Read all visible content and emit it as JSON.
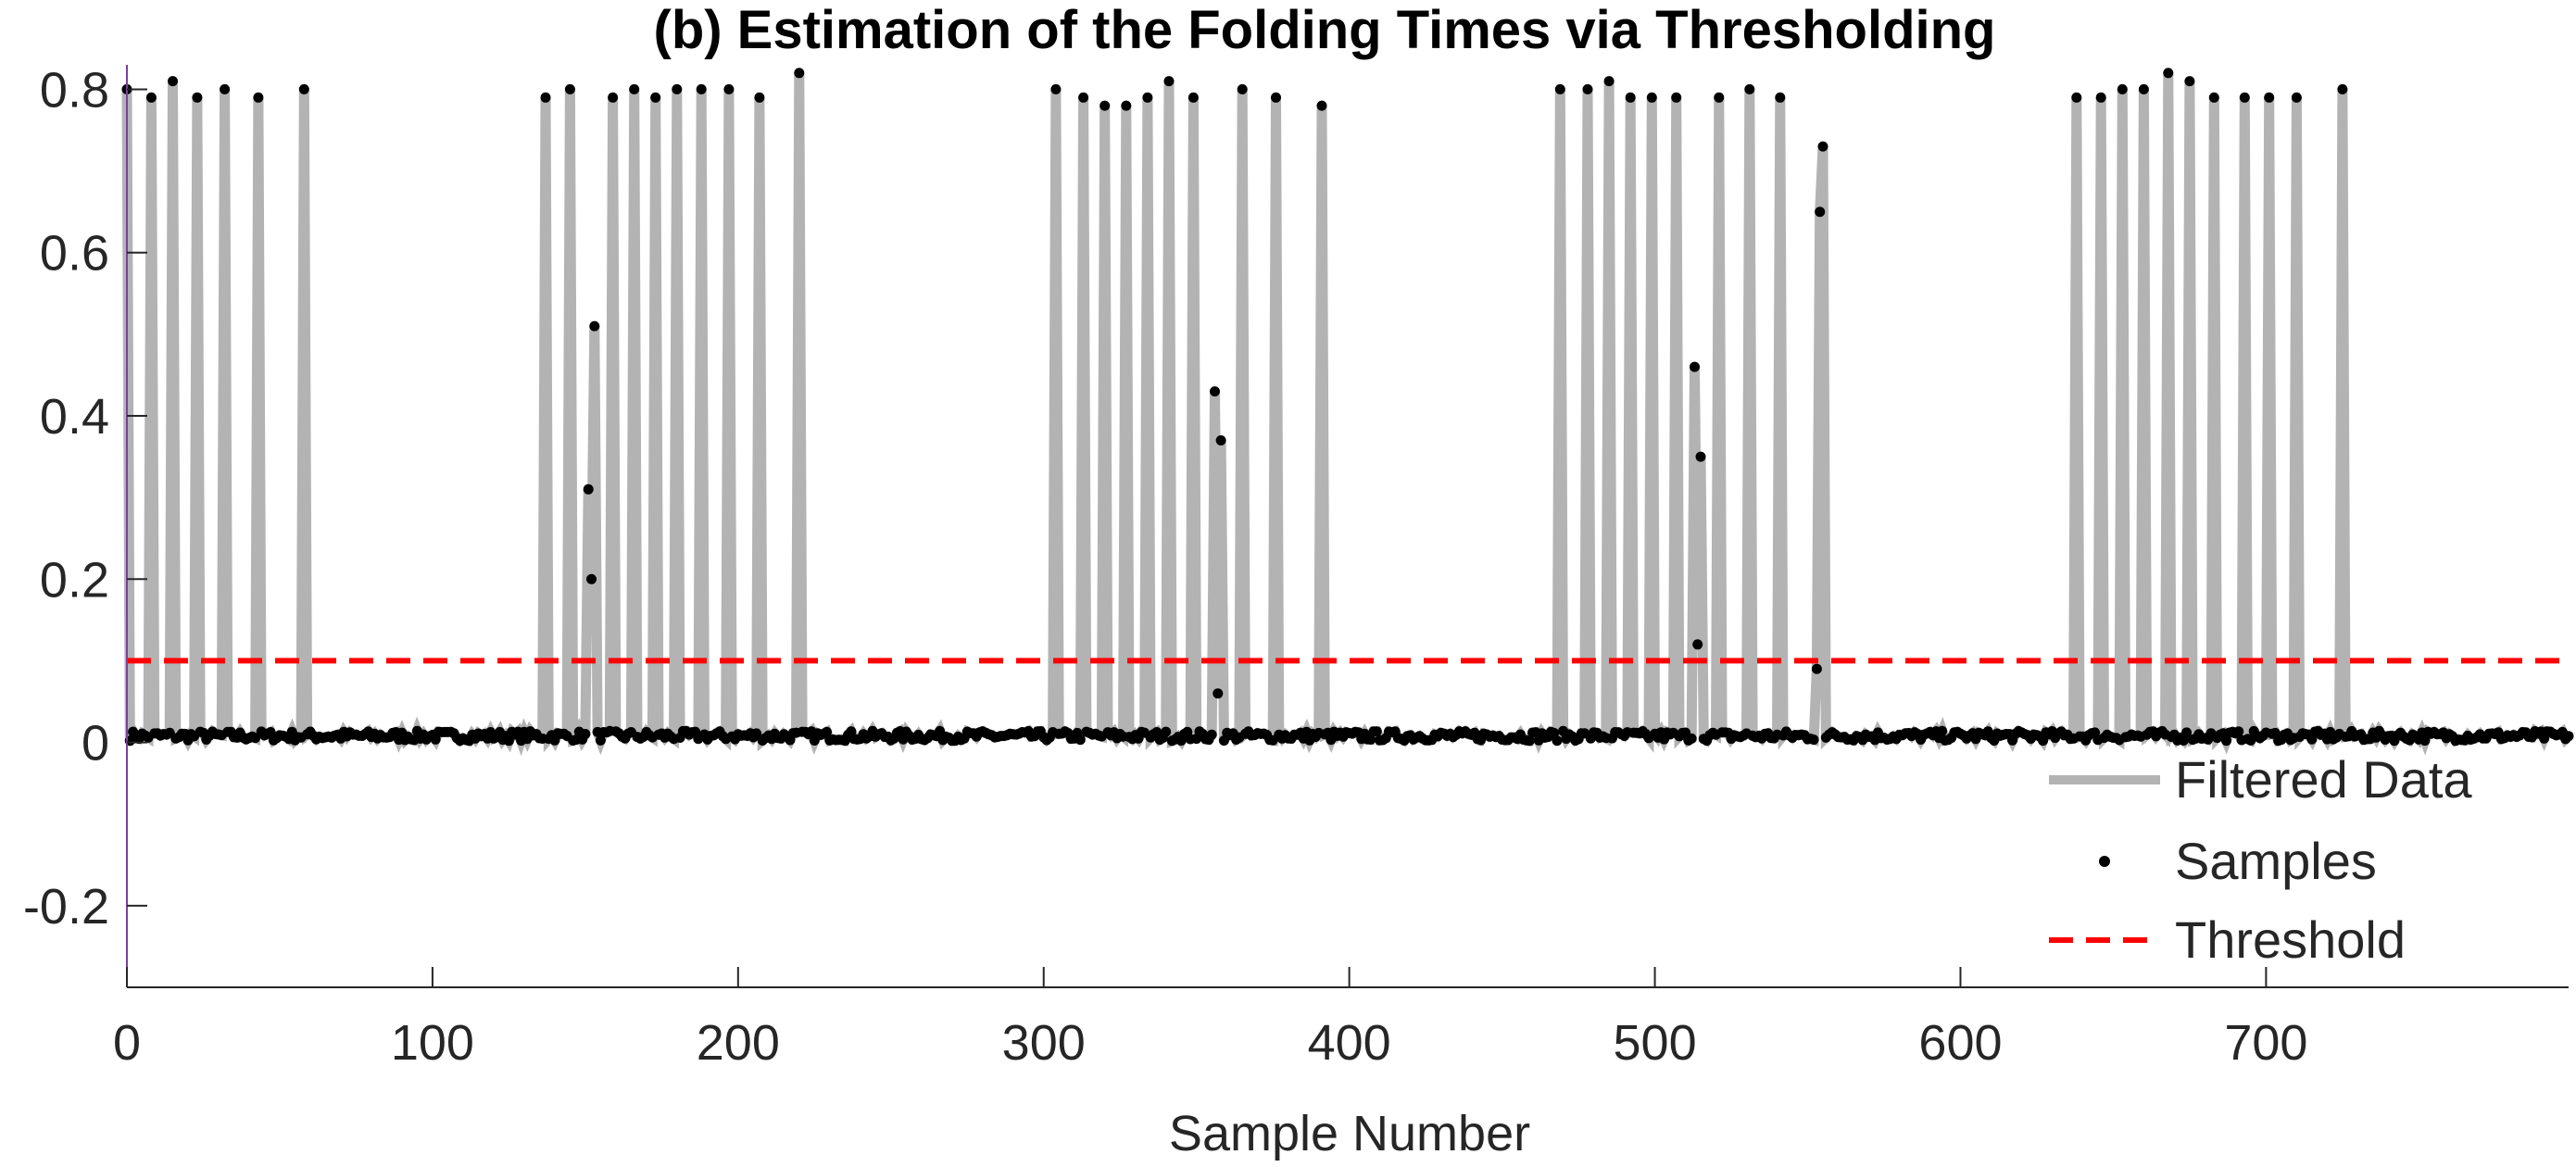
{
  "chart_data": {
    "type": "line",
    "title": "(b) Estimation of the Folding Times via Thresholding",
    "xlabel": "Sample Number",
    "ylabel": "",
    "xlim": [
      0,
      799
    ],
    "ylim": [
      -0.3,
      0.83
    ],
    "x_ticks": [
      0,
      100,
      200,
      300,
      400,
      500,
      600,
      700
    ],
    "x_tick_labels": [
      "0",
      "100",
      "200",
      "300",
      "400",
      "500",
      "600",
      "700"
    ],
    "y_ticks": [
      -0.2,
      0,
      0.2,
      0.4,
      0.6,
      0.8
    ],
    "y_tick_labels": [
      "-0.2",
      "0",
      "0.2",
      "0.4",
      "0.6",
      "0.8"
    ],
    "grid": false,
    "legend_position": "bottom-right",
    "legend": [
      {
        "label": "Filtered Data",
        "style": "solid-line",
        "color": "#b3b3b3"
      },
      {
        "label": "Samples",
        "style": "marker",
        "color": "#000000"
      },
      {
        "label": "Threshold",
        "style": "dashed-line",
        "color": "#ff0000"
      }
    ],
    "threshold": 0.1,
    "baseline": {
      "mean": 0.008,
      "spread": 0.006
    },
    "pulse_peaks": [
      [
        0,
        0.8
      ],
      [
        8,
        0.79
      ],
      [
        15,
        0.81
      ],
      [
        23,
        0.79
      ],
      [
        32,
        0.8
      ],
      [
        43,
        0.79
      ],
      [
        58,
        0.8
      ],
      [
        137,
        0.79
      ],
      [
        145,
        0.8
      ],
      [
        159,
        0.79
      ],
      [
        166,
        0.8
      ],
      [
        173,
        0.79
      ],
      [
        180,
        0.8
      ],
      [
        188,
        0.8
      ],
      [
        197,
        0.8
      ],
      [
        207,
        0.79
      ],
      [
        220,
        0.82
      ],
      [
        304,
        0.8
      ],
      [
        313,
        0.79
      ],
      [
        320,
        0.78
      ],
      [
        327,
        0.78
      ],
      [
        334,
        0.79
      ],
      [
        341,
        0.81
      ],
      [
        349,
        0.79
      ],
      [
        365,
        0.8
      ],
      [
        376,
        0.79
      ],
      [
        391,
        0.78
      ],
      [
        469,
        0.8
      ],
      [
        478,
        0.8
      ],
      [
        485,
        0.81
      ],
      [
        492,
        0.79
      ],
      [
        499,
        0.79
      ],
      [
        507,
        0.79
      ],
      [
        521,
        0.79
      ],
      [
        531,
        0.8
      ],
      [
        541,
        0.79
      ],
      [
        638,
        0.79
      ],
      [
        646,
        0.79
      ],
      [
        653,
        0.8
      ],
      [
        660,
        0.8
      ],
      [
        668,
        0.82
      ],
      [
        675,
        0.81
      ],
      [
        683,
        0.79
      ],
      [
        693,
        0.79
      ],
      [
        701,
        0.79
      ],
      [
        710,
        0.79
      ],
      [
        725,
        0.8
      ]
    ],
    "transition_points": [
      [
        151,
        0.31
      ],
      [
        152,
        0.2
      ],
      [
        153,
        0.51
      ],
      [
        356,
        0.43
      ],
      [
        357,
        0.06
      ],
      [
        358,
        0.37
      ],
      [
        513,
        0.46
      ],
      [
        514,
        0.12
      ],
      [
        515,
        0.35
      ],
      [
        553,
        0.09
      ],
      [
        554,
        0.65
      ],
      [
        555,
        0.73
      ]
    ],
    "colors": {
      "filtered": "#b3b3b3",
      "samples": "#000000",
      "threshold": "#ff0000",
      "axis": "#262626",
      "y_axis_line": "#7b3fa0"
    }
  }
}
